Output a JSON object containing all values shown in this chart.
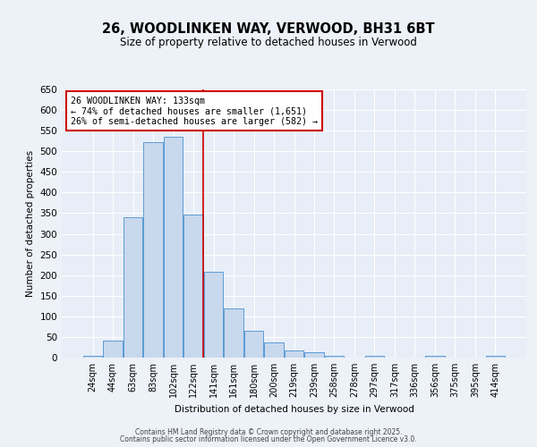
{
  "title_line1": "26, WOODLINKEN WAY, VERWOOD, BH31 6BT",
  "title_line2": "Size of property relative to detached houses in Verwood",
  "xlabel": "Distribution of detached houses by size in Verwood",
  "ylabel": "Number of detached properties",
  "bar_labels": [
    "24sqm",
    "44sqm",
    "63sqm",
    "83sqm",
    "102sqm",
    "122sqm",
    "141sqm",
    "161sqm",
    "180sqm",
    "200sqm",
    "219sqm",
    "239sqm",
    "258sqm",
    "278sqm",
    "297sqm",
    "317sqm",
    "336sqm",
    "356sqm",
    "375sqm",
    "395sqm",
    "414sqm"
  ],
  "bar_values": [
    5,
    42,
    340,
    522,
    535,
    346,
    207,
    120,
    65,
    37,
    18,
    12,
    5,
    0,
    5,
    0,
    0,
    5,
    0,
    0,
    5
  ],
  "bar_color": "#c8d8ed",
  "bar_edge_color": "#5b9bd5",
  "red_line_x": 5.475,
  "annotation_line1": "26 WOODLINKEN WAY: 133sqm",
  "annotation_line2": "← 74% of detached houses are smaller (1,651)",
  "annotation_line3": "26% of semi-detached houses are larger (582) →",
  "annotation_box_facecolor": "#ffffff",
  "annotation_box_edgecolor": "#cc0000",
  "ylim": [
    0,
    650
  ],
  "yticks": [
    0,
    50,
    100,
    150,
    200,
    250,
    300,
    350,
    400,
    450,
    500,
    550,
    600,
    650
  ],
  "footer_line1": "Contains HM Land Registry data © Crown copyright and database right 2025.",
  "footer_line2": "Contains public sector information licensed under the Open Government Licence v3.0.",
  "plot_bg_color": "#e8eef7",
  "fig_bg_color": "#edf1f8",
  "grid_color": "#ffffff"
}
